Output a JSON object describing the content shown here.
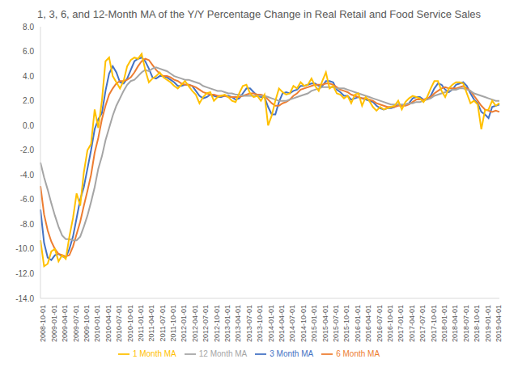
{
  "chart_data": {
    "type": "line",
    "title": "1, 3, 6, and 12-Month MA of the Y/Y Percentage Change in Real Retail and Food Service Sales",
    "categories": [
      "2008-10-01",
      null,
      null,
      "2009-01-01",
      null,
      null,
      "2009-04-01",
      null,
      null,
      "2009-07-01",
      null,
      null,
      "2009-10-01",
      null,
      null,
      "2010-01-01",
      null,
      null,
      "2010-04-01",
      null,
      null,
      "2010-07-01",
      null,
      null,
      "2010-10-01",
      null,
      null,
      "2011-01-01",
      null,
      null,
      "2011-04-01",
      null,
      null,
      "2011-07-01",
      null,
      null,
      "2011-10-01",
      null,
      null,
      "2012-01-01",
      null,
      null,
      "2012-04-01",
      null,
      null,
      "2012-07-01",
      null,
      null,
      "2012-10-01",
      null,
      null,
      "2013-01-01",
      null,
      null,
      "2013-04-01",
      null,
      null,
      "2013-07-01",
      null,
      null,
      "2013-10-01",
      null,
      null,
      "2014-01-01",
      null,
      null,
      "2014-04-01",
      null,
      null,
      "2014-07-01",
      null,
      null,
      "2014-10-01",
      null,
      null,
      "2015-01-01",
      null,
      null,
      "2015-04-01",
      null,
      null,
      "2015-07-01",
      null,
      null,
      "2015-10-01",
      null,
      null,
      "2016-01-01",
      null,
      null,
      "2016-04-01",
      null,
      null,
      "2016-07-01",
      null,
      null,
      "2016-10-01",
      null,
      null,
      "2017-01-01",
      null,
      null,
      "2017-04-01",
      null,
      null,
      "2017-07-01",
      null,
      null,
      "2017-10-01",
      null,
      null,
      "2018-01-01",
      null,
      null,
      "2018-04-01",
      null,
      null,
      "2018-07-01",
      null,
      null,
      "2018-10-01",
      null,
      null,
      "2019-01-01",
      null,
      null,
      "2019-04-01",
      null
    ],
    "series": [
      {
        "name": "3 Month MA",
        "color": "#4472c4",
        "values": [
          -6.8,
          -9.5,
          -10.7,
          -10.9,
          -10.5,
          -10.4,
          -10.6,
          -10.7,
          -10.0,
          -9.0,
          -7.5,
          -6.0,
          -5.0,
          -3.5,
          -2.0,
          -0.3,
          0.5,
          1.0,
          2.8,
          4.2,
          4.8,
          4.3,
          3.5,
          3.4,
          3.8,
          4.5,
          5.2,
          5.4,
          5.5,
          5.2,
          4.6,
          3.9,
          3.8,
          4.0,
          4.0,
          3.9,
          3.7,
          3.5,
          3.2,
          3.2,
          3.3,
          3.3,
          3.2,
          2.8,
          2.4,
          2.2,
          2.3,
          2.5,
          2.4,
          2.3,
          2.3,
          2.4,
          2.4,
          2.3,
          2.1,
          2.2,
          2.6,
          3.0,
          3.0,
          2.7,
          2.4,
          2.3,
          2.3,
          1.5,
          0.9,
          0.9,
          1.9,
          2.6,
          2.7,
          2.6,
          2.8,
          2.9,
          3.2,
          3.2,
          3.3,
          3.4,
          3.4,
          3.2,
          3.2,
          3.6,
          3.6,
          3.5,
          2.9,
          2.7,
          2.4,
          2.4,
          2.1,
          2.2,
          2.3,
          2.2,
          2.1,
          2.0,
          1.9,
          1.6,
          1.4,
          1.3,
          1.4,
          1.4,
          1.5,
          1.7,
          1.6,
          1.7,
          1.8,
          2.2,
          2.3,
          2.3,
          2.1,
          2.1,
          2.4,
          3.0,
          3.4,
          3.3,
          2.9,
          2.7,
          2.9,
          3.3,
          3.4,
          3.5,
          3.2,
          2.6,
          2.1,
          1.8,
          1.1,
          0.9,
          0.6,
          1.5,
          1.6,
          1.7
        ]
      },
      {
        "name": "6 Month MA",
        "color": "#ed7d31",
        "values": [
          -4.9,
          -7.2,
          -8.5,
          -9.4,
          -10.0,
          -10.4,
          -10.5,
          -10.6,
          -10.5,
          -9.8,
          -8.8,
          -7.8,
          -6.5,
          -5.3,
          -4.0,
          -2.2,
          -1.0,
          0.5,
          1.6,
          2.5,
          3.0,
          3.4,
          3.6,
          3.6,
          3.7,
          3.9,
          4.3,
          4.8,
          5.2,
          5.4,
          5.3,
          4.9,
          4.5,
          4.2,
          4.0,
          4.0,
          3.9,
          3.7,
          3.6,
          3.4,
          3.3,
          3.3,
          3.2,
          3.1,
          2.9,
          2.7,
          2.6,
          2.5,
          2.5,
          2.4,
          2.4,
          2.4,
          2.3,
          2.3,
          2.3,
          2.3,
          2.4,
          2.5,
          2.6,
          2.6,
          2.5,
          2.5,
          2.4,
          2.1,
          1.8,
          1.6,
          1.6,
          1.8,
          1.9,
          2.1,
          2.4,
          2.6,
          2.9,
          3.0,
          3.1,
          3.2,
          3.3,
          3.3,
          3.3,
          3.4,
          3.4,
          3.3,
          3.1,
          2.9,
          2.8,
          2.7,
          2.5,
          2.4,
          2.3,
          2.2,
          2.2,
          2.1,
          2.0,
          1.8,
          1.7,
          1.6,
          1.5,
          1.5,
          1.5,
          1.6,
          1.6,
          1.6,
          1.7,
          1.9,
          2.1,
          2.1,
          2.1,
          2.2,
          2.3,
          2.6,
          2.8,
          3.0,
          3.1,
          3.0,
          3.0,
          3.0,
          3.1,
          3.2,
          3.0,
          2.8,
          2.4,
          2.0,
          1.6,
          1.3,
          1.2,
          1.1,
          1.2,
          1.1
        ]
      },
      {
        "name": "12 Month MA",
        "color": "#a5a5a5",
        "values": [
          -3.0,
          -4.2,
          -5.2,
          -6.3,
          -7.3,
          -8.2,
          -8.9,
          -9.2,
          -9.2,
          -9.3,
          -9.3,
          -9.0,
          -8.2,
          -7.3,
          -6.2,
          -5.0,
          -3.5,
          -2.5,
          -1.2,
          -0.2,
          0.8,
          1.6,
          2.2,
          2.8,
          3.3,
          3.6,
          3.7,
          4.0,
          4.3,
          4.5,
          4.4,
          4.6,
          4.7,
          4.6,
          4.5,
          4.4,
          4.2,
          4.0,
          3.9,
          3.8,
          3.7,
          3.7,
          3.6,
          3.5,
          3.4,
          3.2,
          3.1,
          3.0,
          2.9,
          2.8,
          2.8,
          2.7,
          2.6,
          2.6,
          2.5,
          2.5,
          2.4,
          2.4,
          2.4,
          2.4,
          2.4,
          2.4,
          2.4,
          2.3,
          2.2,
          2.1,
          2.0,
          2.0,
          2.0,
          2.1,
          2.2,
          2.3,
          2.4,
          2.5,
          2.6,
          2.8,
          2.9,
          3.0,
          3.1,
          3.1,
          3.1,
          3.1,
          3.0,
          3.0,
          3.0,
          2.9,
          2.8,
          2.7,
          2.6,
          2.5,
          2.4,
          2.3,
          2.2,
          2.1,
          2.0,
          1.9,
          1.8,
          1.7,
          1.7,
          1.7,
          1.7,
          1.7,
          1.8,
          1.8,
          1.9,
          1.9,
          2.0,
          2.1,
          2.2,
          2.4,
          2.5,
          2.6,
          2.7,
          2.8,
          2.9,
          2.9,
          3.0,
          3.0,
          2.9,
          2.8,
          2.6,
          2.5,
          2.4,
          2.3,
          2.2,
          2.1,
          2.0,
          2.0
        ]
      },
      {
        "name": "1 Month MA",
        "color": "#ffc000",
        "values": [
          -9.3,
          -11.4,
          -11.2,
          -10.2,
          -10.0,
          -11.0,
          -10.5,
          -10.8,
          -9.0,
          -7.5,
          -5.5,
          -6.5,
          -3.8,
          -2.0,
          -1.5,
          1.3,
          -0.2,
          2.0,
          5.2,
          5.5,
          4.0,
          3.5,
          3.0,
          3.6,
          4.8,
          5.3,
          5.5,
          5.4,
          5.8,
          4.5,
          3.5,
          3.8,
          4.0,
          4.3,
          3.9,
          3.7,
          3.5,
          3.2,
          3.0,
          3.3,
          3.6,
          3.2,
          2.8,
          2.5,
          1.8,
          2.3,
          2.6,
          2.7,
          2.0,
          2.3,
          2.4,
          2.5,
          2.3,
          2.0,
          1.9,
          2.6,
          3.2,
          3.3,
          2.6,
          2.3,
          2.4,
          2.0,
          2.5,
          0.0,
          0.8,
          2.0,
          3.0,
          2.7,
          2.5,
          2.6,
          3.2,
          3.0,
          3.5,
          3.2,
          3.3,
          3.8,
          3.2,
          2.8,
          3.6,
          4.3,
          3.0,
          3.2,
          2.6,
          2.5,
          2.2,
          2.4,
          1.8,
          2.5,
          2.6,
          1.6,
          2.3,
          2.0,
          1.5,
          1.2,
          1.5,
          1.3,
          1.4,
          1.5,
          1.6,
          2.0,
          1.3,
          1.9,
          2.2,
          2.4,
          2.3,
          2.2,
          1.9,
          2.3,
          3.0,
          3.6,
          3.6,
          2.8,
          2.3,
          3.0,
          3.3,
          3.5,
          3.5,
          3.4,
          2.6,
          1.8,
          2.0,
          1.7,
          -0.3,
          1.2,
          1.3,
          2.0,
          1.6,
          1.8
        ]
      }
    ],
    "ylim": [
      -14,
      8
    ],
    "yticks": [
      {
        "value": -14,
        "label": "-14.0"
      },
      {
        "value": -12,
        "label": "-12.0"
      },
      {
        "value": -10,
        "label": "-10.0"
      },
      {
        "value": -8,
        "label": "-8.0"
      },
      {
        "value": -6,
        "label": "-6.0"
      },
      {
        "value": -4,
        "label": "-4.0"
      },
      {
        "value": -2,
        "label": "-2.0"
      },
      {
        "value": 0,
        "label": "0.0"
      },
      {
        "value": 2,
        "label": "2.0"
      },
      {
        "value": 4,
        "label": "4.0"
      },
      {
        "value": 6,
        "label": "6.0"
      },
      {
        "value": 8,
        "label": "8.0"
      }
    ],
    "grid": false,
    "legend": "bottom"
  }
}
